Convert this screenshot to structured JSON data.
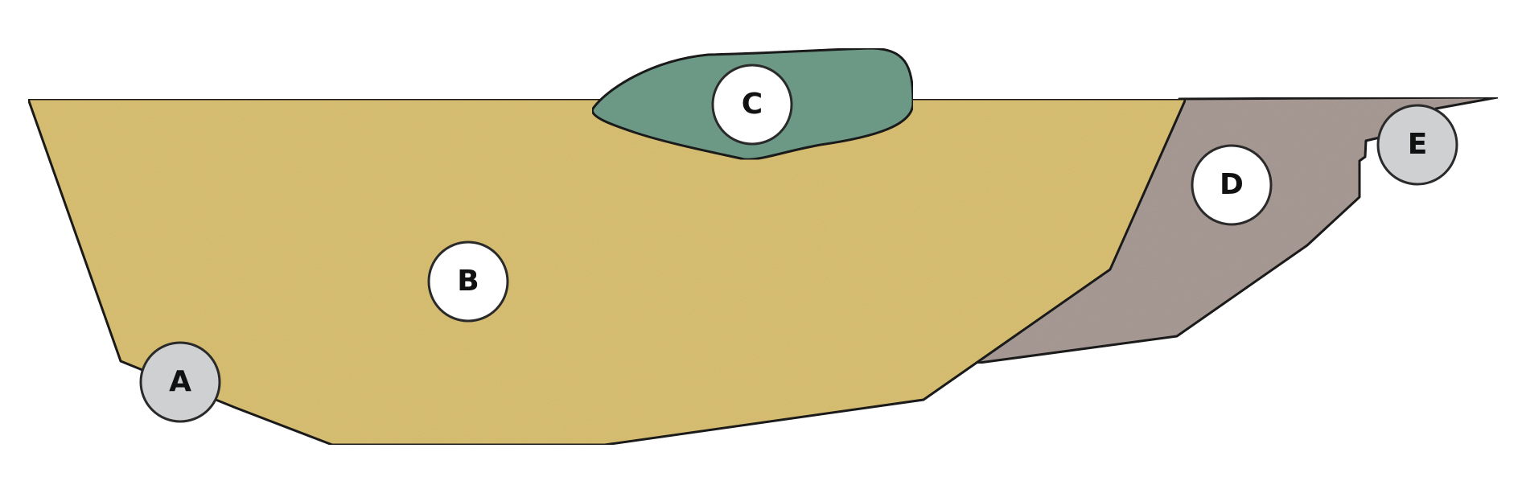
{
  "diagram": {
    "regions": [
      {
        "id": "B",
        "label": "B",
        "fill": "#d8bf72",
        "marker_style": "white"
      },
      {
        "id": "C",
        "label": "C",
        "fill": "#6e9c88",
        "marker_style": "white"
      },
      {
        "id": "D",
        "label": "D",
        "fill": "#a89a94",
        "marker_style": "white"
      }
    ],
    "boundary_markers": [
      {
        "id": "A",
        "label": "A",
        "marker_style": "grey"
      },
      {
        "id": "E",
        "label": "E",
        "marker_style": "grey"
      }
    ],
    "colors": {
      "marker_white": "#ffffff",
      "marker_grey": "#cfd0d2",
      "outline": "#1a1a1a",
      "background": "#ffffff"
    }
  }
}
